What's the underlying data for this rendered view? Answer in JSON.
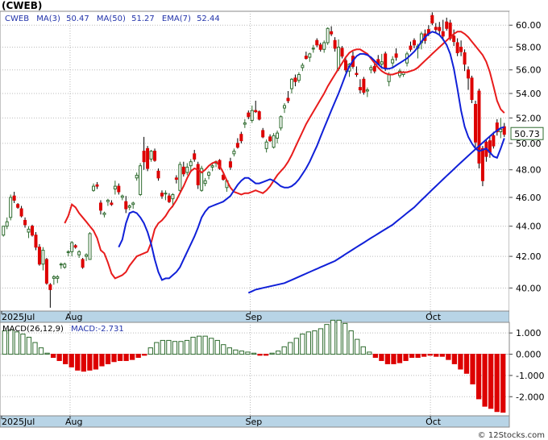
{
  "ticker_title": "(CWEB)",
  "legend": {
    "symbol": "CWEB",
    "ma3_label": "MA(3)",
    "ma3_value": "50.47",
    "ma50_label": "MA(50)",
    "ma50_value": "51.27",
    "ema7_label": "EMA(7)",
    "ema7_value": "52.44"
  },
  "last_price_tag": "50.73",
  "macd_legend": {
    "label": "MACD(26,12,9)",
    "value_label": "MACD:-2.731"
  },
  "watermark": "© 12Stocks.com",
  "colors": {
    "up": "#2e6b2e",
    "down": "#dd0000",
    "ma_red": "#e81c1c",
    "ma_blue": "#1020d8",
    "axis_band": "#b8d4e6",
    "grid": "#bbbbbb",
    "text_blue": "#2233aa"
  },
  "chart_data": [
    {
      "type": "candlestick",
      "title": "(CWEB)",
      "x_labels": [
        "2025Jul",
        "Aug",
        "Sep",
        "Oct"
      ],
      "x_label_index": [
        0,
        19,
        69,
        119
      ],
      "y_ticks": [
        40,
        42,
        44,
        46,
        48,
        50,
        52,
        54,
        56,
        58,
        60
      ],
      "y_tick_labels": [
        "40.00",
        "42.00",
        "44.00",
        "46.00",
        "48.00",
        "50.00",
        "52.00",
        "54.00",
        "56.00",
        "58.00",
        "60.00"
      ],
      "y_range": [
        38.6,
        61.3
      ],
      "log_scale": true,
      "grid": true,
      "candles": [
        [
          43.4,
          44.0,
          43.3,
          44.0
        ],
        [
          44.0,
          44.6,
          43.8,
          44.3
        ],
        [
          44.6,
          46.2,
          44.4,
          46.0
        ],
        [
          46.1,
          46.4,
          45.6,
          45.8
        ],
        [
          45.5,
          45.6,
          45.2,
          45.3
        ],
        [
          45.2,
          45.4,
          44.6,
          44.7
        ],
        [
          44.4,
          44.6,
          43.9,
          44.1
        ],
        [
          43.6,
          44.0,
          43.2,
          43.8
        ],
        [
          44.0,
          44.1,
          43.3,
          43.4
        ],
        [
          43.4,
          43.6,
          42.4,
          42.6
        ],
        [
          42.6,
          42.8,
          41.4,
          41.5
        ],
        [
          41.5,
          42.6,
          41.1,
          42.4
        ],
        [
          41.8,
          41.9,
          40.2,
          40.3
        ],
        [
          40.2,
          40.3,
          38.8,
          39.9
        ],
        [
          40.6,
          40.8,
          40.2,
          40.7
        ],
        [
          40.6,
          40.8,
          40.3,
          40.7
        ],
        [
          41.5,
          41.6,
          41.2,
          41.5
        ],
        [
          41.3,
          41.6,
          41.2,
          41.5
        ],
        [
          42.3,
          42.4,
          42.0,
          42.3
        ],
        [
          42.3,
          43.0,
          42.0,
          42.9
        ],
        [
          42.7,
          42.8,
          42.5,
          42.6
        ],
        [
          42.1,
          42.4,
          41.9,
          42.3
        ],
        [
          41.8,
          41.9,
          41.2,
          41.3
        ],
        [
          42.0,
          42.2,
          41.7,
          42.1
        ],
        [
          41.8,
          43.6,
          41.8,
          43.5
        ],
        [
          46.5,
          47.0,
          46.4,
          46.8
        ],
        [
          46.9,
          47.1,
          46.6,
          46.8
        ],
        [
          45.6,
          45.8,
          44.8,
          45.1
        ],
        [
          44.8,
          45.0,
          44.6,
          44.9
        ],
        [
          45.7,
          45.9,
          45.4,
          45.8
        ],
        [
          45.6,
          45.8,
          45.4,
          45.5
        ],
        [
          46.6,
          47.2,
          46.2,
          46.8
        ],
        [
          46.8,
          47.0,
          46.2,
          46.4
        ],
        [
          46.0,
          46.2,
          45.8,
          46.1
        ],
        [
          45.7,
          46.1,
          44.9,
          45.2
        ],
        [
          45.3,
          45.5,
          45.1,
          45.4
        ],
        [
          45.5,
          45.7,
          45.2,
          45.6
        ],
        [
          47.4,
          47.8,
          47.2,
          47.6
        ],
        [
          46.2,
          48.5,
          46.1,
          48.3
        ],
        [
          49.4,
          50.5,
          48.0,
          48.6
        ],
        [
          49.6,
          49.8,
          47.9,
          48.1
        ],
        [
          48.8,
          49.5,
          48.6,
          49.4
        ],
        [
          49.4,
          49.6,
          48.6,
          48.7
        ],
        [
          47.9,
          48.1,
          47.2,
          47.4
        ],
        [
          46.3,
          46.5,
          45.9,
          46.1
        ],
        [
          46.3,
          46.5,
          45.8,
          46.3
        ],
        [
          46.1,
          46.3,
          45.6,
          45.7
        ],
        [
          45.9,
          46.3,
          45.3,
          46.2
        ],
        [
          47.4,
          47.6,
          47.0,
          47.3
        ],
        [
          46.5,
          48.6,
          46.4,
          48.4
        ],
        [
          48.2,
          48.6,
          47.5,
          47.7
        ],
        [
          47.8,
          48.5,
          47.6,
          48.2
        ],
        [
          48.3,
          48.8,
          47.8,
          48.6
        ],
        [
          49.2,
          49.5,
          48.6,
          48.8
        ],
        [
          48.4,
          48.6,
          46.6,
          46.9
        ],
        [
          46.5,
          48.3,
          46.4,
          48.1
        ],
        [
          47.0,
          47.4,
          46.8,
          47.2
        ],
        [
          47.6,
          47.9,
          47.3,
          47.8
        ],
        [
          48.2,
          48.5,
          47.9,
          48.3
        ],
        [
          48.5,
          48.7,
          48.2,
          48.6
        ],
        [
          48.7,
          48.8,
          48.0,
          48.1
        ],
        [
          47.6,
          47.8,
          47.2,
          47.3
        ],
        [
          46.7,
          47.3,
          46.4,
          47.2
        ],
        [
          48.6,
          48.9,
          48.0,
          48.2
        ],
        [
          49.2,
          49.6,
          49.0,
          49.4
        ],
        [
          50.0,
          50.4,
          49.6,
          49.7
        ],
        [
          50.7,
          50.9,
          50.0,
          50.2
        ],
        [
          51.5,
          51.9,
          51.2,
          51.6
        ],
        [
          52.4,
          52.6,
          51.9,
          52.1
        ],
        [
          51.8,
          53.0,
          51.6,
          52.6
        ],
        [
          52.6,
          53.4,
          52.4,
          52.5
        ],
        [
          52.5,
          52.6,
          51.8,
          51.9
        ],
        [
          51.0,
          51.2,
          50.4,
          50.5
        ],
        [
          49.6,
          50.3,
          49.3,
          50.1
        ],
        [
          50.5,
          50.7,
          50.1,
          50.2
        ],
        [
          49.7,
          50.8,
          49.6,
          50.6
        ],
        [
          50.4,
          51.0,
          50.0,
          50.8
        ],
        [
          51.2,
          52.2,
          51.0,
          52.1
        ],
        [
          52.8,
          53.2,
          52.4,
          53.0
        ],
        [
          53.6,
          54.2,
          53.2,
          53.4
        ],
        [
          54.4,
          55.3,
          54.0,
          55.2
        ],
        [
          55.3,
          55.6,
          54.6,
          55.0
        ],
        [
          55.1,
          55.8,
          54.9,
          55.6
        ],
        [
          56.2,
          56.6,
          55.9,
          56.4
        ],
        [
          57.2,
          57.6,
          56.9,
          57.0
        ],
        [
          57.1,
          57.5,
          56.7,
          57.4
        ],
        [
          57.9,
          58.2,
          57.5,
          57.9
        ],
        [
          58.6,
          58.8,
          58.0,
          58.2
        ],
        [
          58.2,
          58.4,
          57.6,
          57.8
        ],
        [
          57.8,
          58.6,
          57.5,
          58.4
        ],
        [
          58.4,
          59.8,
          58.2,
          59.7
        ],
        [
          59.4,
          59.9,
          59.0,
          59.2
        ],
        [
          58.6,
          58.9,
          57.6,
          57.9
        ],
        [
          56.1,
          58.7,
          55.9,
          58.0
        ],
        [
          57.9,
          58.1,
          57.0,
          57.2
        ],
        [
          56.8,
          57.0,
          55.8,
          56.0
        ],
        [
          55.9,
          56.6,
          55.4,
          56.5
        ],
        [
          57.2,
          57.6,
          56.1,
          56.3
        ],
        [
          55.7,
          56.3,
          55.4,
          55.6
        ],
        [
          54.5,
          55.2,
          54.0,
          54.3
        ],
        [
          55.2,
          55.4,
          53.9,
          54.1
        ],
        [
          54.2,
          54.5,
          53.7,
          54.3
        ],
        [
          56.0,
          56.4,
          55.7,
          56.2
        ],
        [
          56.3,
          56.6,
          55.7,
          55.9
        ],
        [
          56.9,
          57.3,
          56.4,
          56.5
        ],
        [
          56.5,
          57.4,
          56.1,
          56.7
        ],
        [
          57.4,
          57.6,
          55.9,
          56.1
        ],
        [
          55.0,
          55.8,
          54.6,
          55.6
        ],
        [
          56.6,
          57.2,
          56.2,
          56.9
        ],
        [
          57.4,
          57.9,
          56.8,
          57.1
        ],
        [
          55.5,
          56.1,
          55.3,
          55.9
        ],
        [
          55.6,
          55.9,
          55.4,
          55.8
        ],
        [
          56.6,
          57.6,
          56.3,
          57.4
        ],
        [
          58.1,
          58.5,
          57.6,
          57.8
        ],
        [
          58.6,
          58.8,
          57.9,
          58.2
        ],
        [
          57.9,
          58.3,
          57.0,
          58.1
        ],
        [
          58.4,
          59.4,
          57.8,
          59.2
        ],
        [
          59.2,
          59.6,
          58.3,
          58.6
        ],
        [
          59.6,
          60.0,
          59.0,
          59.2
        ],
        [
          60.9,
          61.2,
          60.0,
          60.2
        ],
        [
          59.8,
          60.2,
          59.3,
          59.6
        ],
        [
          59.8,
          60.3,
          59.1,
          59.5
        ],
        [
          59.4,
          60.5,
          58.6,
          59.0
        ],
        [
          60.3,
          60.7,
          59.5,
          59.7
        ],
        [
          60.2,
          60.5,
          58.6,
          58.8
        ],
        [
          59.0,
          59.6,
          58.1,
          58.5
        ],
        [
          58.4,
          58.8,
          57.2,
          57.5
        ],
        [
          58.0,
          58.6,
          57.2,
          57.6
        ],
        [
          57.5,
          57.8,
          55.9,
          56.5
        ],
        [
          56.0,
          56.3,
          54.3,
          55.3
        ],
        [
          55.3,
          55.5,
          53.2,
          53.5
        ],
        [
          53.1,
          53.4,
          49.7,
          50.1
        ],
        [
          54.2,
          54.4,
          48.1,
          48.5
        ],
        [
          49.6,
          49.8,
          46.8,
          47.2
        ],
        [
          50.1,
          50.3,
          48.6,
          49.0
        ],
        [
          50.2,
          50.5,
          48.9,
          49.3
        ],
        [
          50.6,
          50.9,
          49.6,
          49.8
        ],
        [
          51.6,
          51.9,
          50.6,
          50.9
        ],
        [
          50.9,
          52.0,
          50.4,
          51.1
        ],
        [
          51.3,
          51.6,
          50.5,
          50.7
        ]
      ],
      "ma_red": [
        44.2,
        44.7,
        45.5,
        45.3,
        44.9,
        44.6,
        44.3,
        44.0,
        43.7,
        43.2,
        42.4,
        42.2,
        41.6,
        40.9,
        40.6,
        40.7,
        40.8,
        41.0,
        41.4,
        41.7,
        42.0,
        42.1,
        42.2,
        42.3,
        42.9,
        43.8,
        44.2,
        44.4,
        44.7,
        45.1,
        45.4,
        45.8,
        46.3,
        46.8,
        47.4,
        47.9,
        48.1,
        48.0,
        47.8,
        48.0,
        48.3,
        48.5,
        48.6,
        48.3,
        47.8,
        47.2,
        46.7,
        46.4,
        46.3,
        46.2,
        46.3,
        46.3,
        46.4,
        46.5,
        46.4,
        46.3,
        46.5,
        46.8,
        47.2,
        47.6,
        47.9,
        48.2,
        48.6,
        49.1,
        49.7,
        50.3,
        50.9,
        51.5,
        52.0,
        52.5,
        53.0,
        53.5,
        54.0,
        54.6,
        55.1,
        55.6,
        56.1,
        56.6,
        57.1,
        57.5,
        57.7,
        57.8,
        57.8,
        57.6,
        57.4,
        57.0,
        56.6,
        56.2,
        55.9,
        55.7,
        55.6,
        55.6,
        55.7,
        55.8,
        55.8,
        55.8,
        55.9,
        56.0,
        56.2,
        56.5,
        56.8,
        57.1,
        57.4,
        57.7,
        58.0,
        58.3,
        58.6,
        58.9,
        59.2,
        59.4,
        59.4,
        59.2,
        58.9,
        58.5,
        58.1,
        57.7,
        57.3,
        56.7,
        55.8,
        54.6,
        53.4,
        52.7,
        52.4
      ],
      "ma_blue_short": [
        42.6,
        43.1,
        44.2,
        44.9,
        45.0,
        44.9,
        44.6,
        44.2,
        43.6,
        42.8,
        41.8,
        41.0,
        40.5,
        40.6,
        40.6,
        40.8,
        41.0,
        41.3,
        41.8,
        42.3,
        42.8,
        43.3,
        43.9,
        44.6,
        45.0,
        45.3,
        45.4,
        45.5,
        45.6,
        45.7,
        45.9,
        46.1,
        46.5,
        46.9,
        47.2,
        47.4,
        47.4,
        47.2,
        47.0,
        47.0,
        47.1,
        47.2,
        47.3,
        47.2,
        47.0,
        46.8,
        46.7,
        46.7,
        46.8,
        47.0,
        47.3,
        47.7,
        48.1,
        48.6,
        49.2,
        49.8,
        50.5,
        51.2,
        51.9,
        52.6,
        53.3,
        54.0,
        54.8,
        55.6,
        56.3,
        56.8,
        57.2,
        57.4,
        57.4,
        57.3,
        57.1,
        56.8,
        56.5,
        56.2,
        56.1,
        56.1,
        56.2,
        56.4,
        56.6,
        56.8,
        57.0,
        57.3,
        57.6,
        58.0,
        58.5,
        58.9,
        59.2,
        59.4,
        59.3,
        59.1,
        58.7,
        58.2,
        57.4,
        56.1,
        54.4,
        52.6,
        51.3,
        50.5,
        50.0,
        49.6,
        49.4,
        49.5,
        49.6,
        49.3,
        49.0,
        48.9,
        49.6,
        50.4
      ],
      "ma_blue_long": [
        39.7,
        39.8,
        39.9,
        39.95,
        40.0,
        40.05,
        40.1,
        40.15,
        40.2,
        40.25,
        40.3,
        40.4,
        40.5,
        40.6,
        40.7,
        40.8,
        40.9,
        41.0,
        41.1,
        41.2,
        41.3,
        41.4,
        41.5,
        41.6,
        41.7,
        41.85,
        42.0,
        42.15,
        42.3,
        42.45,
        42.6,
        42.75,
        42.9,
        43.05,
        43.2,
        43.35,
        43.5,
        43.65,
        43.8,
        43.95,
        44.1,
        44.3,
        44.5,
        44.7,
        44.9,
        45.1,
        45.3,
        45.55,
        45.8,
        46.05,
        46.3,
        46.55,
        46.8,
        47.05,
        47.3,
        47.55,
        47.8,
        48.05,
        48.3,
        48.55,
        48.8,
        49.05,
        49.3,
        49.55,
        49.8,
        50.05,
        50.3,
        50.55,
        50.8,
        51.0,
        51.2,
        51.27
      ]
    },
    {
      "type": "bar",
      "title": "MACD(26,12,9)",
      "value_label": "MACD:-2.731",
      "y_ticks": [
        -2,
        -1,
        0,
        1
      ],
      "y_tick_labels": [
        "-2.000",
        "-1.000",
        "0.000",
        "1.000"
      ],
      "y_range": [
        -2.9,
        1.5
      ],
      "values": [
        1.1,
        1.15,
        1.05,
        0.95,
        0.8,
        0.55,
        0.3,
        0.05,
        -0.15,
        -0.3,
        -0.45,
        -0.6,
        -0.75,
        -0.8,
        -0.75,
        -0.7,
        -0.55,
        -0.45,
        -0.35,
        -0.3,
        -0.3,
        -0.25,
        -0.15,
        -0.05,
        0.3,
        0.55,
        0.65,
        0.65,
        0.6,
        0.6,
        0.65,
        0.8,
        0.85,
        0.85,
        0.75,
        0.65,
        0.45,
        0.3,
        0.2,
        0.15,
        0.1,
        0.05,
        -0.05,
        -0.05,
        0.05,
        0.15,
        0.35,
        0.55,
        0.75,
        0.95,
        1.05,
        1.1,
        1.2,
        1.4,
        1.6,
        1.6,
        1.45,
        1.1,
        0.7,
        0.35,
        0.1,
        -0.15,
        -0.3,
        -0.45,
        -0.45,
        -0.4,
        -0.3,
        -0.15,
        -0.15,
        -0.1,
        -0.05,
        -0.1,
        -0.1,
        -0.25,
        -0.45,
        -0.7,
        -0.9,
        -1.4,
        -2.1,
        -2.45,
        -2.55,
        -2.7,
        -2.731
      ]
    }
  ]
}
